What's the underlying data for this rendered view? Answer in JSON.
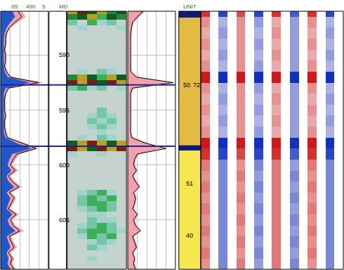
{
  "chart_data": {
    "type": "well_log",
    "ylim": [
      586,
      609.5
    ],
    "yticks": [
      590,
      595,
      600,
      605
    ],
    "grid": true,
    "tick_labels": "y",
    "headers": {
      "curves_1": [
        ".05",
        "490",
        "5"
      ],
      "depth": [
        "MD"
      ],
      "zones": [
        "UNIT"
      ]
    },
    "depth": [
      586.0,
      586.5,
      587.0,
      587.5,
      588.0,
      588.5,
      589.0,
      589.5,
      590.0,
      590.5,
      591.0,
      591.5,
      592.0,
      592.5,
      593.0,
      593.5,
      594.0,
      594.5,
      595.0,
      595.5,
      596.0,
      596.5,
      597.0,
      597.5,
      598.0,
      598.5,
      599.0,
      599.5,
      600.0,
      600.5,
      601.0,
      601.5,
      602.0,
      602.5,
      603.0,
      603.5,
      604.0,
      604.5,
      605.0,
      605.5,
      606.0,
      606.5,
      607.0,
      607.5,
      608.0,
      608.5,
      609.0,
      609.5
    ],
    "curves_1": {
      "xlim": [
        0,
        5
      ],
      "xticks": [
        0,
        1,
        2,
        3,
        4,
        5
      ],
      "series": [
        {
          "color": "#f2a0aa",
          "line_style": "fill",
          "values": [
            2.2,
            2.6,
            1.8,
            1.0,
            0.7,
            0.6,
            0.6,
            0.5,
            0.6,
            0.6,
            0.5,
            0.7,
            1.2,
            4.4,
            0.9,
            0.6,
            0.5,
            0.5,
            0.5,
            0.6,
            0.5,
            0.5,
            0.6,
            0.8,
            2.5,
            4.0,
            2.0,
            1.5,
            1.2,
            1.8,
            1.0,
            1.4,
            2.2,
            1.1,
            1.6,
            1.3,
            1.0,
            1.9,
            1.2,
            1.5,
            2.4,
            1.1,
            1.3,
            1.7,
            1.0,
            1.4,
            1.2,
            1.6
          ]
        },
        {
          "color": "#2257c8",
          "line_style": "fill",
          "values": [
            1.2,
            1.5,
            1.0,
            0.6,
            0.4,
            0.3,
            0.3,
            0.3,
            0.3,
            0.3,
            0.3,
            0.4,
            0.7,
            3.0,
            0.5,
            0.3,
            0.3,
            0.3,
            0.3,
            0.3,
            0.3,
            0.3,
            0.3,
            0.5,
            1.6,
            3.2,
            1.2,
            0.9,
            0.7,
            1.1,
            0.6,
            0.8,
            1.4,
            0.6,
            1.0,
            0.8,
            0.6,
            1.2,
            0.7,
            0.9,
            1.5,
            0.6,
            0.8,
            1.0,
            0.6,
            0.8,
            0.7,
            1.0
          ]
        },
        {
          "color": "#000000",
          "line_style": "solid",
          "values": [
            1.8,
            2.2,
            1.5,
            0.9,
            0.6,
            0.5,
            0.5,
            0.4,
            0.5,
            0.5,
            0.4,
            0.6,
            1.0,
            4.0,
            0.8,
            0.5,
            0.4,
            0.4,
            0.4,
            0.5,
            0.4,
            0.4,
            0.5,
            0.7,
            2.2,
            3.7,
            1.7,
            1.3,
            1.0,
            1.5,
            0.8,
            1.2,
            1.9,
            0.9,
            1.4,
            1.1,
            0.8,
            1.6,
            1.0,
            1.3,
            2.0,
            0.9,
            1.1,
            1.4,
            0.8,
            1.2,
            1.0,
            1.4
          ]
        }
      ]
    },
    "image": {
      "xlim": [
        0,
        6
      ],
      "x": [
        0.5,
        1.5,
        2.5,
        3.5,
        4.5,
        5.5
      ],
      "zlim": [
        0,
        1
      ],
      "z": [
        [
          0.9,
          1.0,
          0.8,
          0.9,
          0.7,
          0.8
        ],
        [
          0.7,
          0.8,
          0.9,
          0.6,
          0.8,
          0.7
        ],
        [
          0.5,
          0.3,
          0.6,
          0.4,
          0.5,
          0.3
        ],
        [
          0.2,
          0.4,
          0.2,
          0.3,
          0.2,
          0.4
        ],
        [
          0.2,
          0.2,
          0.3,
          0.2,
          0.2,
          0.2
        ],
        [
          0.2,
          0.3,
          0.2,
          0.2,
          0.3,
          0.2
        ],
        [
          0.2,
          0.2,
          0.2,
          0.3,
          0.2,
          0.2
        ],
        [
          0.2,
          0.2,
          0.2,
          0.2,
          0.2,
          0.2
        ],
        [
          0.2,
          0.2,
          0.2,
          0.2,
          0.2,
          0.3
        ],
        [
          0.2,
          0.3,
          0.2,
          0.2,
          0.2,
          0.2
        ],
        [
          0.2,
          0.2,
          0.2,
          0.2,
          0.3,
          0.2
        ],
        [
          0.3,
          0.4,
          0.3,
          0.5,
          0.4,
          0.3
        ],
        [
          0.7,
          0.9,
          0.8,
          0.6,
          0.9,
          0.8
        ],
        [
          1.0,
          0.9,
          1.0,
          0.8,
          1.0,
          0.9
        ],
        [
          0.5,
          0.6,
          0.4,
          0.5,
          0.3,
          0.4
        ],
        [
          0.2,
          0.3,
          0.2,
          0.2,
          0.2,
          0.3
        ],
        [
          0.2,
          0.2,
          0.3,
          0.2,
          0.2,
          0.2
        ],
        [
          0.2,
          0.2,
          0.2,
          0.2,
          0.2,
          0.2
        ],
        [
          0.2,
          0.2,
          0.2,
          0.5,
          0.2,
          0.2
        ],
        [
          0.2,
          0.2,
          0.4,
          0.5,
          0.4,
          0.2
        ],
        [
          0.2,
          0.3,
          0.5,
          0.4,
          0.5,
          0.2
        ],
        [
          0.2,
          0.2,
          0.4,
          0.5,
          0.4,
          0.2
        ],
        [
          0.2,
          0.2,
          0.3,
          0.4,
          0.3,
          0.2
        ],
        [
          0.3,
          0.4,
          0.3,
          0.5,
          0.4,
          0.3
        ],
        [
          0.8,
          0.9,
          1.0,
          0.9,
          0.8,
          0.9
        ],
        [
          1.0,
          0.9,
          0.8,
          1.0,
          0.9,
          1.0
        ],
        [
          0.4,
          0.3,
          0.3,
          0.4,
          0.3,
          0.3
        ],
        [
          0.2,
          0.2,
          0.2,
          0.2,
          0.2,
          0.2
        ],
        [
          0.2,
          0.2,
          0.2,
          0.2,
          0.2,
          0.2
        ],
        [
          0.2,
          0.3,
          0.2,
          0.2,
          0.2,
          0.2
        ],
        [
          0.2,
          0.2,
          0.2,
          0.3,
          0.2,
          0.2
        ],
        [
          0.2,
          0.2,
          0.2,
          0.2,
          0.3,
          0.2
        ],
        [
          0.2,
          0.2,
          0.3,
          0.2,
          0.2,
          0.2
        ],
        [
          0.2,
          0.4,
          0.5,
          0.6,
          0.4,
          0.2
        ],
        [
          0.3,
          0.5,
          0.6,
          0.5,
          0.6,
          0.3
        ],
        [
          0.2,
          0.5,
          0.6,
          0.6,
          0.5,
          0.2
        ],
        [
          0.2,
          0.4,
          0.5,
          0.6,
          0.5,
          0.3
        ],
        [
          0.2,
          0.3,
          0.4,
          0.4,
          0.3,
          0.2
        ],
        [
          0.2,
          0.3,
          0.5,
          0.4,
          0.4,
          0.2
        ],
        [
          0.2,
          0.4,
          0.5,
          0.6,
          0.5,
          0.3
        ],
        [
          0.3,
          0.5,
          0.6,
          0.6,
          0.5,
          0.4
        ],
        [
          0.2,
          0.4,
          0.6,
          0.5,
          0.6,
          0.3
        ],
        [
          0.2,
          0.3,
          0.4,
          0.5,
          0.4,
          0.2
        ],
        [
          0.2,
          0.3,
          0.5,
          0.4,
          0.3,
          0.2
        ],
        [
          0.2,
          0.2,
          0.3,
          0.3,
          0.2,
          0.2
        ],
        [
          0.2,
          0.3,
          0.4,
          0.3,
          0.2,
          0.2
        ],
        [
          0.2,
          0.2,
          0.3,
          0.2,
          0.2,
          0.2
        ],
        [
          0.2,
          0.2,
          0.2,
          0.2,
          0.2,
          0.2
        ]
      ]
    },
    "curves_2": {
      "xlim": [
        0,
        5
      ],
      "xticks": [
        0,
        1,
        2,
        3,
        4,
        5
      ],
      "series": [
        {
          "color": "#f2a0aa",
          "line_style": "fill",
          "values": [
            1.8,
            1.2,
            0.6,
            0.4,
            0.4,
            0.3,
            0.3,
            0.3,
            0.3,
            0.3,
            0.3,
            0.4,
            1.0,
            4.4,
            0.6,
            0.3,
            0.3,
            0.3,
            0.3,
            0.3,
            0.3,
            0.3,
            0.3,
            0.5,
            2.0,
            3.6,
            1.2,
            0.8,
            0.7,
            1.0,
            0.6,
            0.9,
            1.3,
            0.7,
            0.9,
            0.8,
            0.6,
            1.1,
            0.7,
            0.9,
            1.4,
            0.6,
            0.8,
            1.0,
            0.6,
            0.8,
            0.7,
            0.9
          ]
        },
        {
          "color": "#000000",
          "line_style": "solid",
          "values": [
            1.6,
            1.0,
            0.5,
            0.4,
            0.3,
            0.3,
            0.3,
            0.3,
            0.3,
            0.3,
            0.3,
            0.3,
            0.9,
            4.8,
            0.5,
            0.3,
            0.3,
            0.3,
            0.3,
            0.3,
            0.3,
            0.3,
            0.3,
            0.4,
            1.8,
            4.0,
            1.0,
            0.7,
            0.6,
            0.9,
            0.5,
            0.8,
            1.2,
            0.6,
            0.8,
            0.7,
            0.5,
            1.0,
            0.6,
            0.8,
            1.3,
            0.5,
            0.7,
            0.9,
            0.5,
            0.7,
            0.6,
            0.8
          ]
        }
      ]
    },
    "tops": [
      592.7,
      598.3
    ],
    "zones": [
      {
        "top": 586.0,
        "base": 586.6,
        "color": "#101a70"
      },
      {
        "top": 586.6,
        "base": 598.2,
        "color": "#e3bb42"
      },
      {
        "top": 598.2,
        "base": 598.7,
        "color": "#101a70"
      },
      {
        "top": 598.7,
        "base": 609.5,
        "color": "#f6e650"
      }
    ],
    "zone_labels": [
      {
        "depth": 592.7,
        "texts": [
          "50",
          "72"
        ]
      },
      {
        "depth": 601.7,
        "texts": [
          "51"
        ]
      },
      {
        "depth": 606.4,
        "texts": [
          "40"
        ]
      }
    ],
    "waveform": {
      "xlim": [
        0,
        16
      ],
      "x": [
        0.5,
        1.5,
        2.5,
        3.5,
        4.5,
        5.5,
        6.5,
        7.5,
        8.5,
        9.5,
        10.5,
        11.5,
        12.5,
        13.5,
        14.5,
        15.5
      ],
      "zlim": [
        -1,
        1
      ],
      "depth": [
        586,
        587,
        588,
        589,
        590,
        591,
        592,
        593,
        594,
        595,
        596,
        597,
        598,
        599,
        600,
        601,
        602,
        603,
        604,
        605,
        606,
        607,
        608,
        609
      ],
      "z": [
        [
          0.9,
          0,
          -0.9,
          0,
          0.8,
          0,
          -0.9,
          0,
          0.9,
          0,
          -0.8,
          0,
          0.9,
          0,
          -0.9,
          0
        ],
        [
          0.5,
          0,
          -0.4,
          0,
          0.5,
          0,
          -0.5,
          0,
          0.4,
          0,
          -0.5,
          0,
          0.5,
          0,
          -0.4,
          0
        ],
        [
          0.4,
          0,
          -0.5,
          0,
          0.5,
          0,
          -0.4,
          0,
          0.5,
          0,
          -0.5,
          0,
          0.4,
          0,
          -0.5,
          0
        ],
        [
          0.5,
          0,
          -0.4,
          0,
          0.5,
          0,
          -0.5,
          0,
          0.4,
          0,
          -0.5,
          0,
          0.5,
          0,
          -0.4,
          0
        ],
        [
          0.4,
          0,
          -0.5,
          0,
          0.5,
          0,
          -0.4,
          0,
          0.5,
          0,
          -0.5,
          0,
          0.4,
          0,
          -0.5,
          0
        ],
        [
          0.5,
          0,
          -0.4,
          0,
          0.5,
          0,
          -0.5,
          0,
          0.4,
          0,
          -0.5,
          0,
          0.5,
          0,
          -0.4,
          0
        ],
        [
          1,
          0,
          -1,
          0,
          1,
          0,
          -1,
          0,
          1,
          0,
          -1,
          0,
          1,
          0,
          -1,
          0
        ],
        [
          0.5,
          0,
          -0.4,
          0,
          0.5,
          0,
          -0.5,
          0,
          0.4,
          0,
          -0.5,
          0,
          0.5,
          0,
          -0.4,
          0
        ],
        [
          0.4,
          0,
          -0.5,
          0,
          0.5,
          0,
          -0.4,
          0,
          0.5,
          0,
          -0.5,
          0,
          0.4,
          0,
          -0.5,
          0
        ],
        [
          0.5,
          0,
          -0.4,
          0,
          0.5,
          0,
          -0.5,
          0,
          0.4,
          0,
          -0.5,
          0,
          0.5,
          0,
          -0.4,
          0
        ],
        [
          0.4,
          0,
          -0.5,
          0,
          0.5,
          0,
          -0.4,
          0,
          0.5,
          0,
          -0.5,
          0,
          0.4,
          0,
          -0.5,
          0
        ],
        [
          0.5,
          0,
          -0.4,
          0,
          0.5,
          0,
          -0.5,
          0,
          0.4,
          0,
          -0.5,
          0,
          0.5,
          0,
          -0.4,
          0
        ],
        [
          1,
          0,
          -1,
          0,
          1,
          0,
          -1,
          0,
          1,
          0,
          -1,
          0,
          1,
          0,
          -1,
          0
        ],
        [
          0.9,
          0,
          -0.9,
          0,
          0.8,
          0,
          -0.9,
          0,
          0.9,
          0,
          -0.8,
          0,
          0.9,
          0,
          -0.9,
          0
        ],
        [
          0.6,
          0,
          -0.6,
          0,
          0.5,
          0,
          -0.6,
          0,
          0.6,
          0,
          -0.5,
          0,
          0.6,
          0,
          -0.6,
          0
        ],
        [
          0.5,
          0,
          -0.6,
          0,
          0.6,
          0,
          -0.5,
          0,
          0.6,
          0,
          -0.6,
          0,
          0.5,
          0,
          -0.6,
          0
        ],
        [
          0.6,
          0,
          -0.6,
          0,
          0.5,
          0,
          -0.6,
          0,
          0.6,
          0,
          -0.5,
          0,
          0.6,
          0,
          -0.6,
          0
        ],
        [
          0.5,
          0,
          -0.6,
          0,
          0.6,
          0,
          -0.5,
          0,
          0.6,
          0,
          -0.6,
          0,
          0.5,
          0,
          -0.6,
          0
        ],
        [
          0.6,
          0,
          -0.6,
          0,
          0.5,
          0,
          -0.6,
          0,
          0.6,
          0,
          -0.5,
          0,
          0.6,
          0,
          -0.6,
          0
        ],
        [
          0.5,
          0,
          -0.6,
          0,
          0.6,
          0,
          -0.5,
          0,
          0.6,
          0,
          -0.6,
          0,
          0.5,
          0,
          -0.6,
          0
        ],
        [
          0.6,
          0,
          -0.6,
          0,
          0.5,
          0,
          -0.6,
          0,
          0.6,
          0,
          -0.5,
          0,
          0.6,
          0,
          -0.6,
          0
        ],
        [
          0.5,
          0,
          -0.6,
          0,
          0.6,
          0,
          -0.5,
          0,
          0.6,
          0,
          -0.6,
          0,
          0.5,
          0,
          -0.6,
          0
        ],
        [
          0.6,
          0,
          -0.6,
          0,
          0.5,
          0,
          -0.6,
          0,
          0.6,
          0,
          -0.5,
          0,
          0.6,
          0,
          -0.6,
          0
        ],
        [
          0.5,
          0,
          -0.6,
          0,
          0.6,
          0,
          -0.5,
          0,
          0.6,
          0,
          -0.6,
          0,
          0.5,
          0,
          -0.6,
          0
        ]
      ]
    }
  }
}
